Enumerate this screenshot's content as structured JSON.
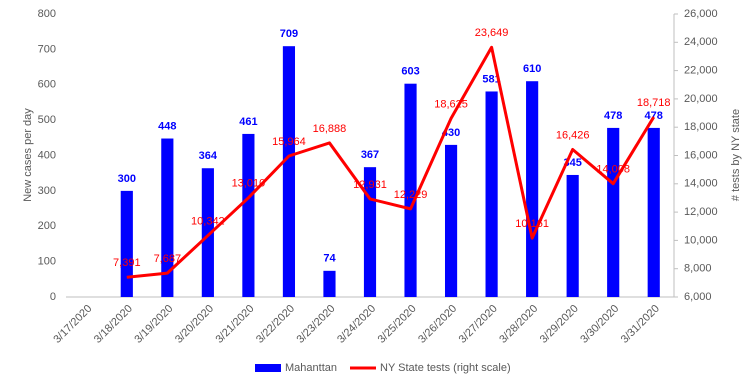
{
  "chart_data": {
    "type": "bar-line",
    "categories": [
      "3/17/2020",
      "3/18/2020",
      "3/19/2020",
      "3/20/2020",
      "3/21/2020",
      "3/22/2020",
      "3/23/2020",
      "3/24/2020",
      "3/25/2020",
      "3/26/2020",
      "3/27/2020",
      "3/28/2020",
      "3/29/2020",
      "3/30/2020",
      "3/31/2020"
    ],
    "series": [
      {
        "name": "Mahanttan",
        "type": "bar",
        "color": "#0000ff",
        "values": [
          null,
          300,
          448,
          364,
          461,
          709,
          74,
          367,
          603,
          430,
          581,
          610,
          345,
          478,
          478
        ]
      },
      {
        "name": "NY State tests (right scale)",
        "type": "line",
        "color": "#ff0000",
        "axis": "y2",
        "values": [
          null,
          7391,
          7687,
          10342,
          13010,
          15964,
          16888,
          12931,
          12229,
          18625,
          23649,
          10161,
          16426,
          14008,
          18718
        ],
        "value_labels": [
          null,
          "7,391",
          "7,687",
          "10,342",
          "13,010",
          "15,964",
          "16,888",
          "12,931",
          "12,229",
          "18,625",
          "23,649",
          "10,161",
          "16,426",
          "14,008",
          "18,718"
        ]
      }
    ],
    "y_label": "New cases per day",
    "y2_label": "# tests by NY state",
    "ylim": [
      0,
      800
    ],
    "yticks": [
      0,
      100,
      200,
      300,
      400,
      500,
      600,
      700,
      800
    ],
    "y2lim": [
      6000,
      26000
    ],
    "y2ticks": [
      {
        "value": 6000,
        "label": "6,000"
      },
      {
        "value": 8000,
        "label": "8,000"
      },
      {
        "value": 10000,
        "label": "10,000"
      },
      {
        "value": 12000,
        "label": "12,000"
      },
      {
        "value": 14000,
        "label": "14,000"
      },
      {
        "value": 16000,
        "label": "16,000"
      },
      {
        "value": 18000,
        "label": "18,000"
      },
      {
        "value": 20000,
        "label": "20,000"
      },
      {
        "value": 22000,
        "label": "22,000"
      },
      {
        "value": 24000,
        "label": "24,000"
      },
      {
        "value": 26000,
        "label": "26,000"
      }
    ],
    "legend": "bottom",
    "grid": false
  }
}
